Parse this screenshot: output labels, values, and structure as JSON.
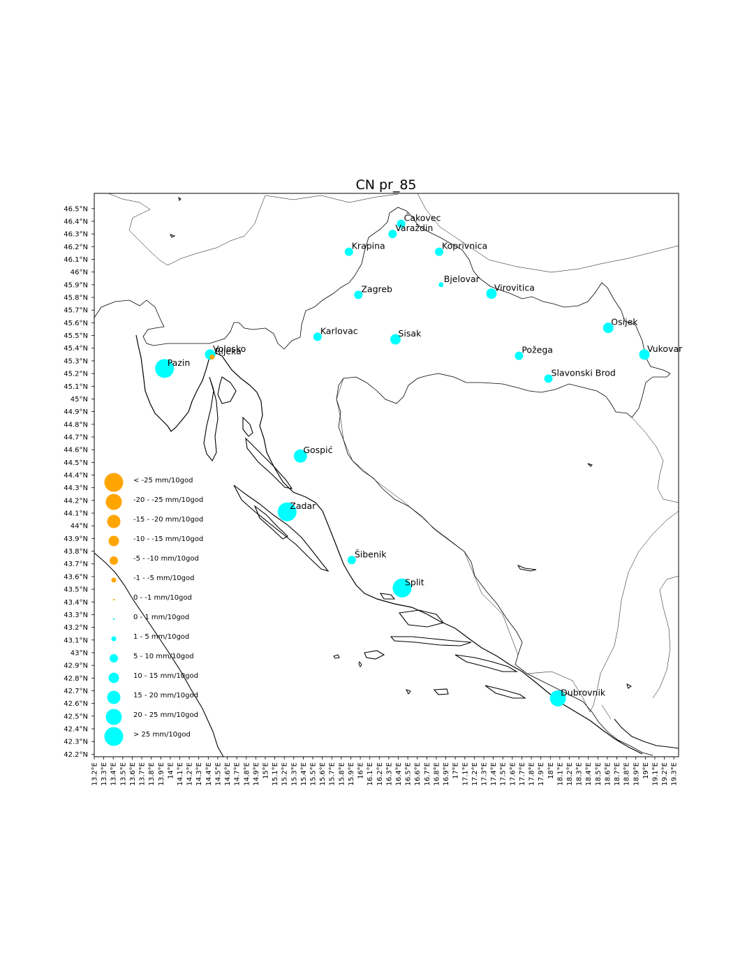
{
  "map": {
    "title": "CN pr_85",
    "lon_range": [
      13.2,
      19.35
    ],
    "lat_range": [
      42.18,
      46.62
    ],
    "colors": {
      "positive": "#00ffff",
      "negative": "#ffa500",
      "coast": "#000000",
      "border": "#000000"
    }
  },
  "axes": {
    "lat_ticks": [
      "46.5°N",
      "46.4°N",
      "46.3°N",
      "46.2°N",
      "46.1°N",
      "46°N",
      "45.9°N",
      "45.8°N",
      "45.7°N",
      "45.6°N",
      "45.5°N",
      "45.4°N",
      "45.3°N",
      "45.2°N",
      "45.1°N",
      "45°N",
      "44.9°N",
      "44.8°N",
      "44.7°N",
      "44.6°N",
      "44.5°N",
      "44.4°N",
      "44.3°N",
      "44.2°N",
      "44.1°N",
      "44°N",
      "43.9°N",
      "43.8°N",
      "43.7°N",
      "43.6°N",
      "43.5°N",
      "43.4°N",
      "43.3°N",
      "43.2°N",
      "43.1°N",
      "43°N",
      "42.9°N",
      "42.8°N",
      "42.7°N",
      "42.6°N",
      "42.5°N",
      "42.4°N",
      "42.3°N",
      "42.2°N"
    ],
    "lon_ticks": [
      "13.2°E",
      "13.3°E",
      "13.4°E",
      "13.5°E",
      "13.6°E",
      "13.7°E",
      "13.8°E",
      "13.9°E",
      "14°E",
      "14.1°E",
      "14.2°E",
      "14.3°E",
      "14.4°E",
      "14.5°E",
      "14.6°E",
      "14.7°E",
      "14.8°E",
      "14.9°E",
      "15°E",
      "15.1°E",
      "15.2°E",
      "15.3°E",
      "15.4°E",
      "15.5°E",
      "15.6°E",
      "15.7°E",
      "15.8°E",
      "15.9°E",
      "16°E",
      "16.1°E",
      "16.2°E",
      "16.3°E",
      "16.4°E",
      "16.5°E",
      "16.6°E",
      "16.7°E",
      "16.8°E",
      "16.9°E",
      "17°E",
      "17.1°E",
      "17.2°E",
      "17.3°E",
      "17.4°E",
      "17.5°E",
      "17.6°E",
      "17.7°E",
      "17.8°E",
      "17.9°E",
      "18°E",
      "18.1°E",
      "18.2°E",
      "18.3°E",
      "18.4°E",
      "18.5°E",
      "18.6°E",
      "18.7°E",
      "18.8°E",
      "18.9°E",
      "19°E",
      "19.1°E",
      "19.2°E",
      "19.3°E"
    ]
  },
  "stations": [
    {
      "name": "Čakovec",
      "lon": 16.43,
      "lat": 46.38,
      "cls": 7
    },
    {
      "name": "Varaždin",
      "lon": 16.34,
      "lat": 46.3,
      "cls": 7
    },
    {
      "name": "Krapina",
      "lon": 15.88,
      "lat": 46.16,
      "cls": 7
    },
    {
      "name": "Koprivnica",
      "lon": 16.83,
      "lat": 46.16,
      "cls": 7
    },
    {
      "name": "Bjelovar",
      "lon": 16.85,
      "lat": 45.9,
      "cls": 6
    },
    {
      "name": "Zagreb",
      "lon": 15.98,
      "lat": 45.82,
      "cls": 7
    },
    {
      "name": "Virovitica",
      "lon": 17.38,
      "lat": 45.83,
      "cls": 8
    },
    {
      "name": "Osijek",
      "lon": 18.61,
      "lat": 45.56,
      "cls": 8
    },
    {
      "name": "Karlovac",
      "lon": 15.55,
      "lat": 45.49,
      "cls": 7
    },
    {
      "name": "Sisak",
      "lon": 16.37,
      "lat": 45.47,
      "cls": 8
    },
    {
      "name": "Vukovar",
      "lon": 18.99,
      "lat": 45.35,
      "cls": 8
    },
    {
      "name": "Požega",
      "lon": 17.67,
      "lat": 45.34,
      "cls": 7
    },
    {
      "name": "Volosko",
      "lon": 14.42,
      "lat": 45.35,
      "cls": 8
    },
    {
      "name": "Rijeka",
      "lon": 14.44,
      "lat": 45.33,
      "cls": 4
    },
    {
      "name": "Pazin",
      "lon": 13.94,
      "lat": 45.24,
      "cls": 11
    },
    {
      "name": "Slavonski Brod",
      "lon": 17.98,
      "lat": 45.16,
      "cls": 7
    },
    {
      "name": "Gospić",
      "lon": 15.37,
      "lat": 44.55,
      "cls": 9
    },
    {
      "name": "Zadar",
      "lon": 15.23,
      "lat": 44.11,
      "cls": 11
    },
    {
      "name": "Šibenik",
      "lon": 15.91,
      "lat": 43.73,
      "cls": 7
    },
    {
      "name": "Split",
      "lon": 16.44,
      "lat": 43.51,
      "cls": 11
    },
    {
      "name": "Dubrovnik",
      "lon": 18.08,
      "lat": 42.64,
      "cls": 10
    }
  ],
  "legend": [
    {
      "label": "< -25 mm/10god",
      "sign": "neg",
      "cls": 11
    },
    {
      "label": "-20 - -25 mm/10god",
      "sign": "neg",
      "cls": 10
    },
    {
      "label": "-15 - -20 mm/10god",
      "sign": "neg",
      "cls": 9
    },
    {
      "label": "-10 - -15 mm/10god",
      "sign": "neg",
      "cls": 8
    },
    {
      "label": "-5 - -10 mm/10god",
      "sign": "neg",
      "cls": 7
    },
    {
      "label": "-1 - -5 mm/10god",
      "sign": "neg",
      "cls": 6
    },
    {
      "label": "0 - -1 mm/10god",
      "sign": "neg",
      "cls": 5
    },
    {
      "label": "0 - 1 mm/10god",
      "sign": "pos",
      "cls": 5
    },
    {
      "label": "1 - 5 mm/10god",
      "sign": "pos",
      "cls": 6
    },
    {
      "label": "5 - 10 mm/10god",
      "sign": "pos",
      "cls": 7
    },
    {
      "label": "10 - 15 mm/10god",
      "sign": "pos",
      "cls": 8
    },
    {
      "label": "15 - 20 mm/10god",
      "sign": "pos",
      "cls": 9
    },
    {
      "label": "20 - 25 mm/10god",
      "sign": "pos",
      "cls": 10
    },
    {
      "label": "> 25 mm/10god",
      "sign": "pos",
      "cls": 11
    }
  ]
}
